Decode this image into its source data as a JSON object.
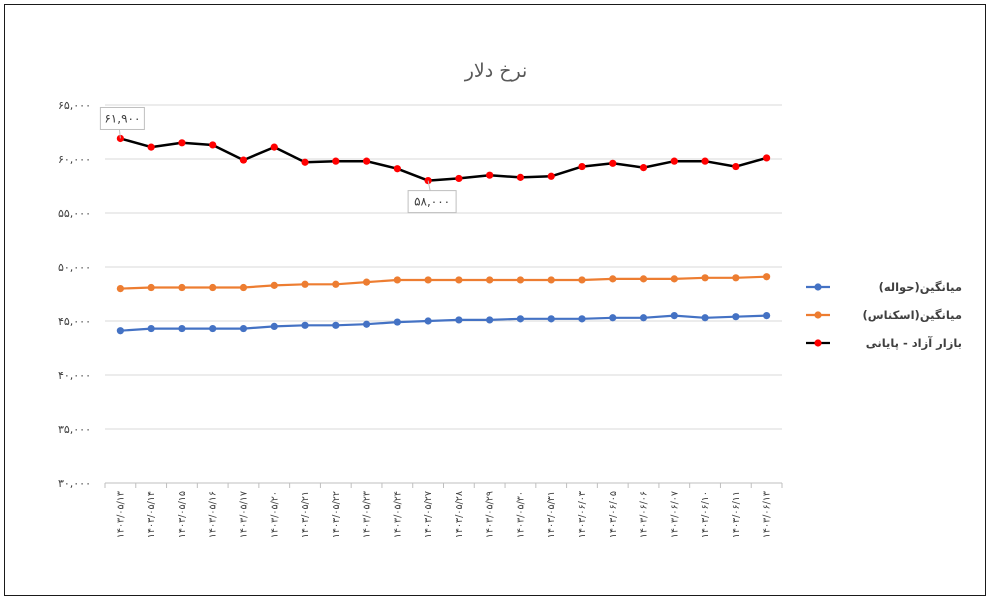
{
  "chart_data": {
    "type": "line",
    "title": "نرخ دلار",
    "ylim": [
      30000,
      65000
    ],
    "yticks": [
      "۳۰,۰۰۰",
      "۳۵,۰۰۰",
      "۴۰,۰۰۰",
      "۴۵,۰۰۰",
      "۵۰,۰۰۰",
      "۵۵,۰۰۰",
      "۶۰,۰۰۰",
      "۶۵,۰۰۰"
    ],
    "ytick_values": [
      30000,
      35000,
      40000,
      45000,
      50000,
      55000,
      60000,
      65000
    ],
    "grid": true,
    "legend_position": "right",
    "categories": [
      "۱۴۰۳/۰۵/۱۳",
      "۱۴۰۳/۰۵/۱۴",
      "۱۴۰۳/۰۵/۱۵",
      "۱۴۰۳/۰۵/۱۶",
      "۱۴۰۳/۰۵/۱۷",
      "۱۴۰۳/۰۵/۲۰",
      "۱۴۰۳/۰۵/۲۱",
      "۱۴۰۳/۰۵/۲۲",
      "۱۴۰۳/۰۵/۲۳",
      "۱۴۰۳/۰۵/۲۴",
      "۱۴۰۳/۰۵/۲۷",
      "۱۴۰۳/۰۵/۲۸",
      "۱۴۰۳/۰۵/۲۹",
      "۱۴۰۳/۰۵/۳۰",
      "۱۴۰۳/۰۵/۳۱",
      "۱۴۰۳/۰۶/۰۳",
      "۱۴۰۳/۰۶/۰۵",
      "۱۴۰۳/۰۶/۰۶",
      "۱۴۰۳/۰۶/۰۷",
      "۱۴۰۳/۰۶/۱۰",
      "۱۴۰۳/۰۶/۱۱",
      "۱۴۰۳/۰۶/۱۳"
    ],
    "series": [
      {
        "name": "میانگین(حواله)",
        "color": "#4472C4",
        "values": [
          44100,
          44300,
          44300,
          44300,
          44300,
          44500,
          44600,
          44600,
          44700,
          44900,
          45000,
          45100,
          45100,
          45200,
          45200,
          45200,
          45300,
          45300,
          45500,
          45300,
          45400,
          45500
        ]
      },
      {
        "name": "میانگین(اسکناس)",
        "color": "#ED7D31",
        "values": [
          48000,
          48100,
          48100,
          48100,
          48100,
          48300,
          48400,
          48400,
          48600,
          48800,
          48800,
          48800,
          48800,
          48800,
          48800,
          48800,
          48900,
          48900,
          48900,
          49000,
          49000,
          49100
        ]
      },
      {
        "name": "بازار آزاد - پایانی",
        "color": "#000000",
        "marker_color": "#FF0000",
        "values": [
          61900,
          61100,
          61500,
          61300,
          59900,
          61100,
          59700,
          59800,
          59800,
          59100,
          58000,
          58200,
          58500,
          58300,
          58400,
          59300,
          59600,
          59200,
          59800,
          59800,
          59300,
          60100
        ]
      }
    ],
    "annotations": [
      {
        "series": 2,
        "index": 0,
        "text": "۶۱,۹۰۰"
      },
      {
        "series": 2,
        "index": 10,
        "text": "۵۸,۰۰۰"
      }
    ]
  }
}
